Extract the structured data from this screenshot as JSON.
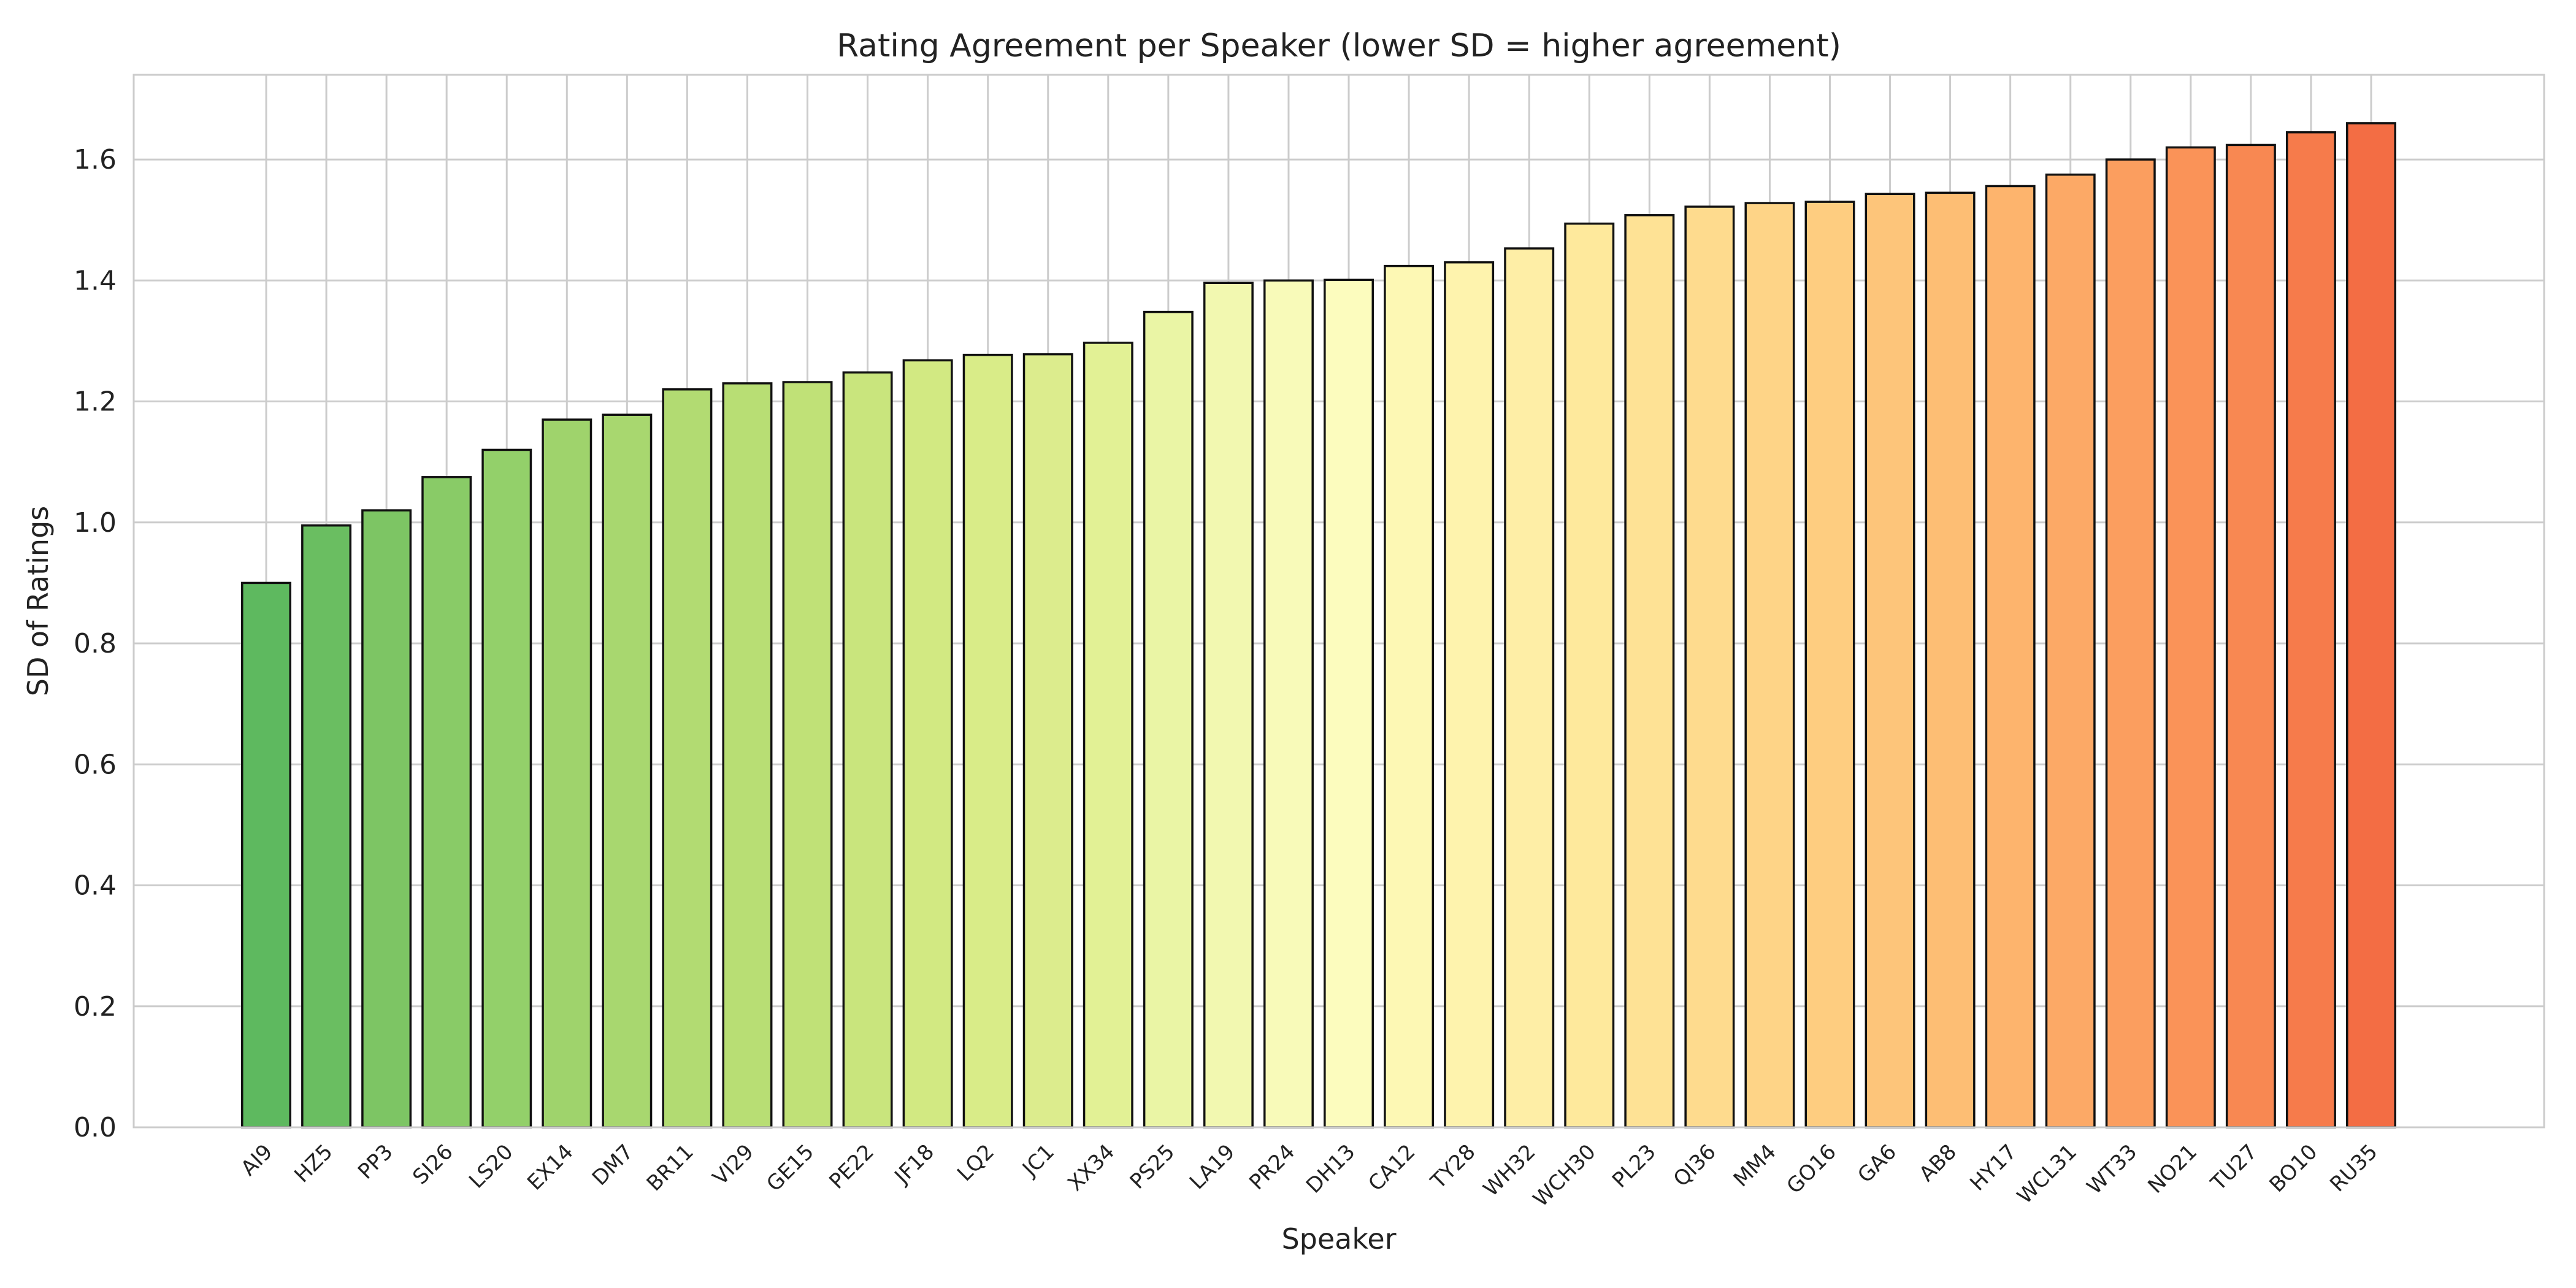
{
  "chart_data": {
    "type": "bar",
    "title": "Rating Agreement per Speaker (lower SD = higher agreement)",
    "xlabel": "Speaker",
    "ylabel": "SD of Ratings",
    "ylim": [
      0,
      1.74
    ],
    "yticks": [
      0.0,
      0.2,
      0.4,
      0.6,
      0.8,
      1.0,
      1.2,
      1.4,
      1.6
    ],
    "ytick_labels": [
      "0.0",
      "0.2",
      "0.4",
      "0.6",
      "0.8",
      "1.0",
      "1.2",
      "1.4",
      "1.6"
    ],
    "grid": true,
    "categories": [
      "AI9",
      "HZ5",
      "PP3",
      "SI26",
      "LS20",
      "EX14",
      "DM7",
      "BR11",
      "VI29",
      "GE15",
      "PE22",
      "JF18",
      "LQ2",
      "JC1",
      "XX34",
      "PS25",
      "LA19",
      "PR24",
      "DH13",
      "CA12",
      "TY28",
      "WH32",
      "WCH30",
      "PL23",
      "QI36",
      "MM4",
      "GO16",
      "GA6",
      "AB8",
      "HY17",
      "WCL31",
      "WT33",
      "NO21",
      "TU27",
      "BO10",
      "RU35"
    ],
    "values": [
      0.9,
      0.995,
      1.02,
      1.075,
      1.12,
      1.17,
      1.178,
      1.22,
      1.23,
      1.232,
      1.248,
      1.268,
      1.277,
      1.278,
      1.297,
      1.348,
      1.396,
      1.4,
      1.401,
      1.424,
      1.43,
      1.453,
      1.494,
      1.508,
      1.522,
      1.528,
      1.53,
      1.543,
      1.545,
      1.556,
      1.575,
      1.6,
      1.62,
      1.624,
      1.645,
      1.66
    ],
    "colors": [
      "#5eb95f",
      "#6abe61",
      "#7dc564",
      "#89cb67",
      "#93d06a",
      "#9fd36c",
      "#a8d76f",
      "#b2db72",
      "#b8de74",
      "#c0e177",
      "#c9e57d",
      "#d2e982",
      "#d9ec88",
      "#dcec8d",
      "#e2f195",
      "#eaf5a5",
      "#f2f8b0",
      "#f8fab9",
      "#fcfcbe",
      "#fdf8b4",
      "#fef3ad",
      "#feeea6",
      "#fee99c",
      "#fee295",
      "#fedb8e",
      "#fed487",
      "#fecd80",
      "#fdc57a",
      "#fdbe74",
      "#fdb46d",
      "#fca966",
      "#fb9e5f",
      "#fa9358",
      "#f88852",
      "#f67b4b",
      "#f36d44"
    ],
    "edgecolor": "#111111"
  }
}
